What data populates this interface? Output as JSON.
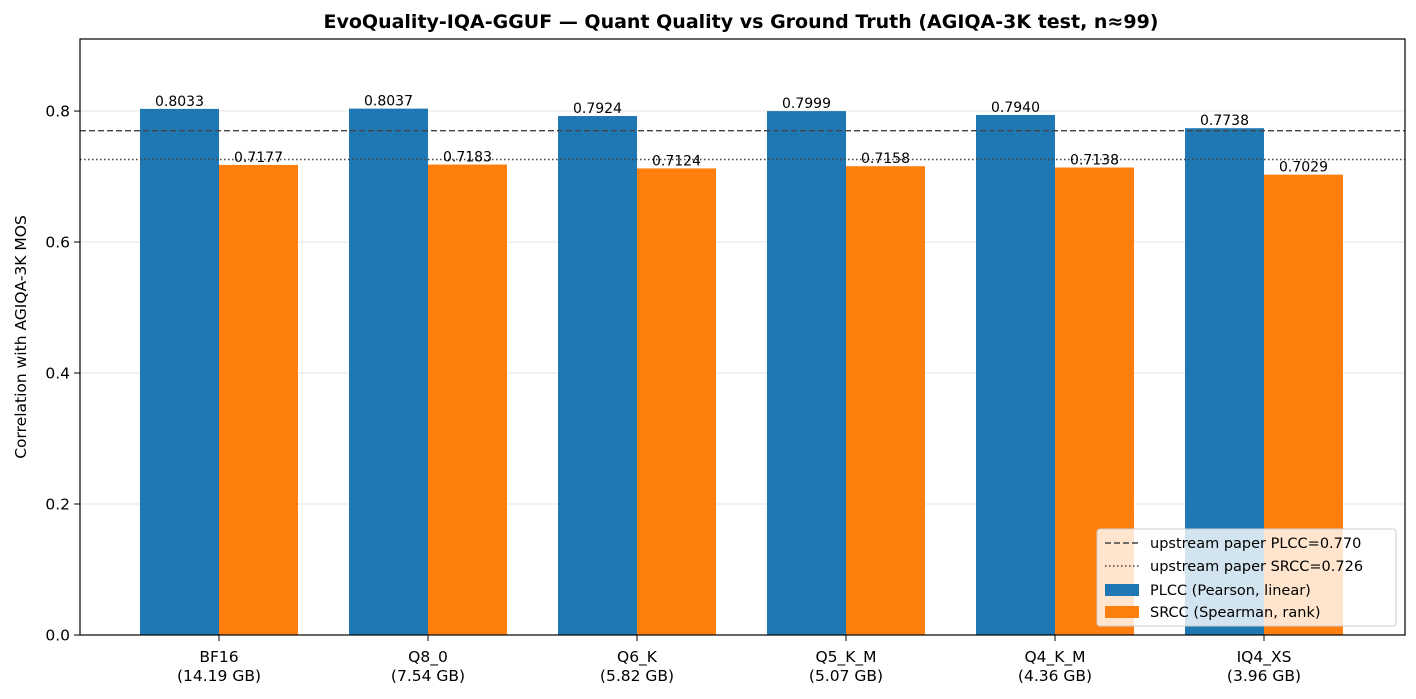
{
  "chart_data": {
    "type": "bar",
    "title": "EvoQuality-IQA-GGUF — Quant Quality vs Ground Truth (AGIQA-3K test, n≈99)",
    "xlabel": "",
    "ylabel": "Correlation with AGIQA-3K MOS",
    "ylim": [
      0,
      0.91
    ],
    "yticks": [
      "0.0",
      "0.2",
      "0.4",
      "0.6",
      "0.8"
    ],
    "ytick_values": [
      0.0,
      0.2,
      0.4,
      0.6,
      0.8
    ],
    "grid": true,
    "legend_position": "bottom-right",
    "categories": [
      "BF16\n(14.19 GB)",
      "Q8_0\n(7.54 GB)",
      "Q6_K\n(5.82 GB)",
      "Q5_K_M\n(5.07 GB)",
      "Q4_K_M\n(4.36 GB)",
      "IQ4_XS\n(3.96 GB)"
    ],
    "series": [
      {
        "name": "PLCC (Pearson, linear)",
        "color": "#1f77b4",
        "values": [
          0.8033,
          0.8037,
          0.7924,
          0.7999,
          0.794,
          0.7738
        ],
        "labels": [
          "0.8033",
          "0.8037",
          "0.7924",
          "0.7999",
          "0.7940",
          "0.7738"
        ]
      },
      {
        "name": "SRCC (Spearman, rank)",
        "color": "#ff7f0e",
        "values": [
          0.7177,
          0.7183,
          0.7124,
          0.7158,
          0.7138,
          0.7029
        ],
        "labels": [
          "0.7177",
          "0.7183",
          "0.7124",
          "0.7158",
          "0.7138",
          "0.7029"
        ]
      }
    ],
    "reference_lines": [
      {
        "name": "upstream paper PLCC=0.770",
        "value": 0.77,
        "style": "dashed",
        "color": "#444444"
      },
      {
        "name": "upstream paper SRCC=0.726",
        "value": 0.726,
        "style": "dotted",
        "color": "#444444"
      }
    ]
  }
}
